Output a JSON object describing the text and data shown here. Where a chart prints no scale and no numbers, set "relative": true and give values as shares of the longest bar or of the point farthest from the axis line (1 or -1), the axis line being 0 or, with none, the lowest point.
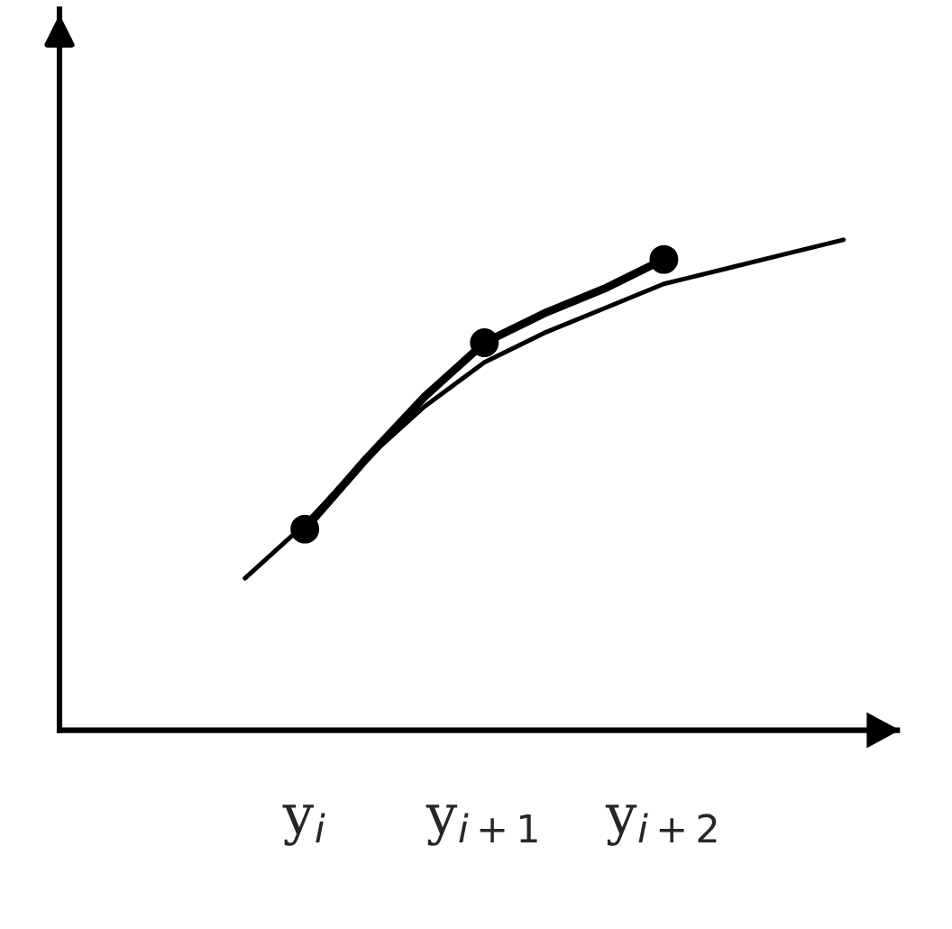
{
  "chart_data": {
    "type": "line",
    "relative": true,
    "categories": [
      null,
      "y$_{i}$",
      null,
      null,
      "y$_{i+1}$",
      null,
      null,
      "y$_{i+2}$",
      null,
      null,
      null
    ],
    "series": [
      {
        "color": "#000000",
        "values": [
          0.31,
          0.42,
          0.55,
          0.66,
          0.75,
          0.81,
          0.86,
          0.91,
          0.94,
          0.97,
          1.0
        ]
      },
      {
        "color": "#000000",
        "values": [
          null,
          0.41,
          0.55,
          0.68,
          0.79,
          0.85,
          0.9,
          0.96,
          null,
          null,
          null
        ]
      },
      {
        "type": "scatter",
        "color": "#000000",
        "values": [
          null,
          0.41,
          null,
          null,
          0.79,
          null,
          null,
          0.96,
          null,
          null,
          null
        ]
      }
    ]
  }
}
